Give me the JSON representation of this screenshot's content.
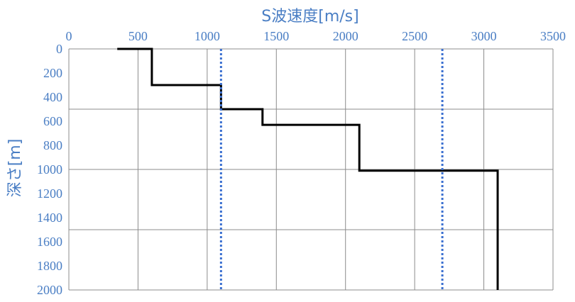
{
  "chart_data": {
    "type": "line",
    "title": "",
    "xlabel": "S波速度[m/s]",
    "ylabel": "深さ[m]",
    "x_axis_position": "top",
    "y_axis_inverted": true,
    "xlim": [
      0,
      3500
    ],
    "ylim": [
      0,
      2000
    ],
    "xticks": [
      0,
      500,
      1000,
      1500,
      2000,
      2500,
      3000,
      3500
    ],
    "yticks": [
      0,
      200,
      400,
      600,
      800,
      1000,
      1200,
      1400,
      1600,
      1800,
      2000
    ],
    "x_gridlines": [
      0,
      500,
      1000,
      1500,
      2000,
      2500,
      3000,
      3500
    ],
    "y_gridlines": [
      500,
      1000,
      1500
    ],
    "grid": true,
    "legend": "none",
    "series": [
      {
        "style": "solid",
        "color": "#000000",
        "x": [
          350,
          600,
          600,
          1100,
          1100,
          1400,
          1400,
          2100,
          2100,
          3100,
          3100
        ],
        "y": [
          0,
          0,
          300,
          300,
          500,
          500,
          630,
          630,
          1010,
          1010,
          2000
        ]
      },
      {
        "style": "dotted",
        "color": "#3a6fd0",
        "x": [
          1100,
          1100
        ],
        "y": [
          0,
          2000
        ]
      },
      {
        "style": "dotted",
        "color": "#3a6fd0",
        "x": [
          2700,
          2700
        ],
        "y": [
          0,
          2000
        ]
      }
    ]
  }
}
